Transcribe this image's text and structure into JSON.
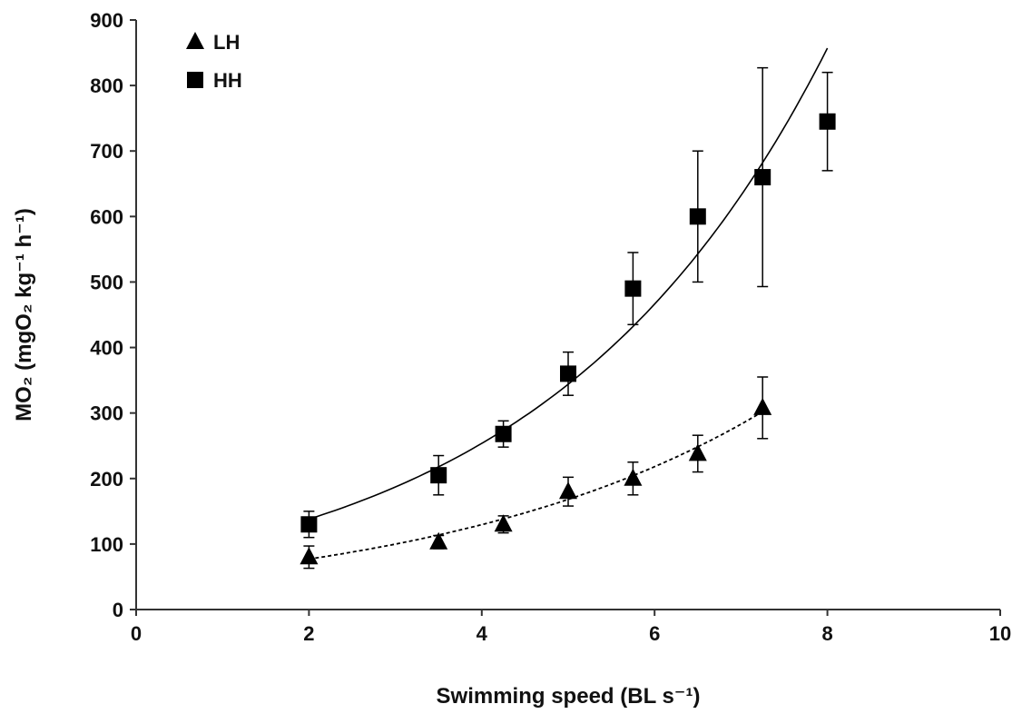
{
  "chart_data": {
    "type": "scatter",
    "xlabel": "Swimming speed (BL s⁻¹)",
    "ylabel": "MO₂ (mgO₂ kg⁻¹ h⁻¹)",
    "xlim": [
      0,
      10
    ],
    "ylim": [
      0,
      900
    ],
    "x_ticks": [
      0,
      2,
      4,
      6,
      8,
      10
    ],
    "y_ticks": [
      0,
      100,
      200,
      300,
      400,
      500,
      600,
      700,
      800,
      900
    ],
    "grid": false,
    "legend_position": "top-left",
    "series": [
      {
        "name": "LH",
        "marker": "triangle",
        "color": "#000000",
        "trendline": "dashed",
        "x": [
          2,
          3.5,
          4.25,
          5,
          5.75,
          6.5,
          7.25
        ],
        "y": [
          80,
          103,
          130,
          180,
          200,
          238,
          308
        ],
        "error": [
          17,
          10,
          13,
          22,
          25,
          28,
          47
        ],
        "fit": {
          "kind": "exponential",
          "x_range": [
            2,
            7.25
          ],
          "y_at_start": 77,
          "y_at_end": 302
        }
      },
      {
        "name": "HH",
        "marker": "square",
        "color": "#000000",
        "trendline": "solid",
        "x": [
          2,
          3.5,
          4.25,
          5,
          5.75,
          6.5,
          7.25,
          8
        ],
        "y": [
          130,
          205,
          268,
          360,
          490,
          600,
          660,
          745
        ],
        "error": [
          20,
          30,
          20,
          33,
          55,
          100,
          167,
          75
        ],
        "fit": {
          "kind": "exponential",
          "x_range": [
            2,
            8
          ],
          "y_at_start": 138,
          "y_at_end": 857
        }
      }
    ]
  }
}
